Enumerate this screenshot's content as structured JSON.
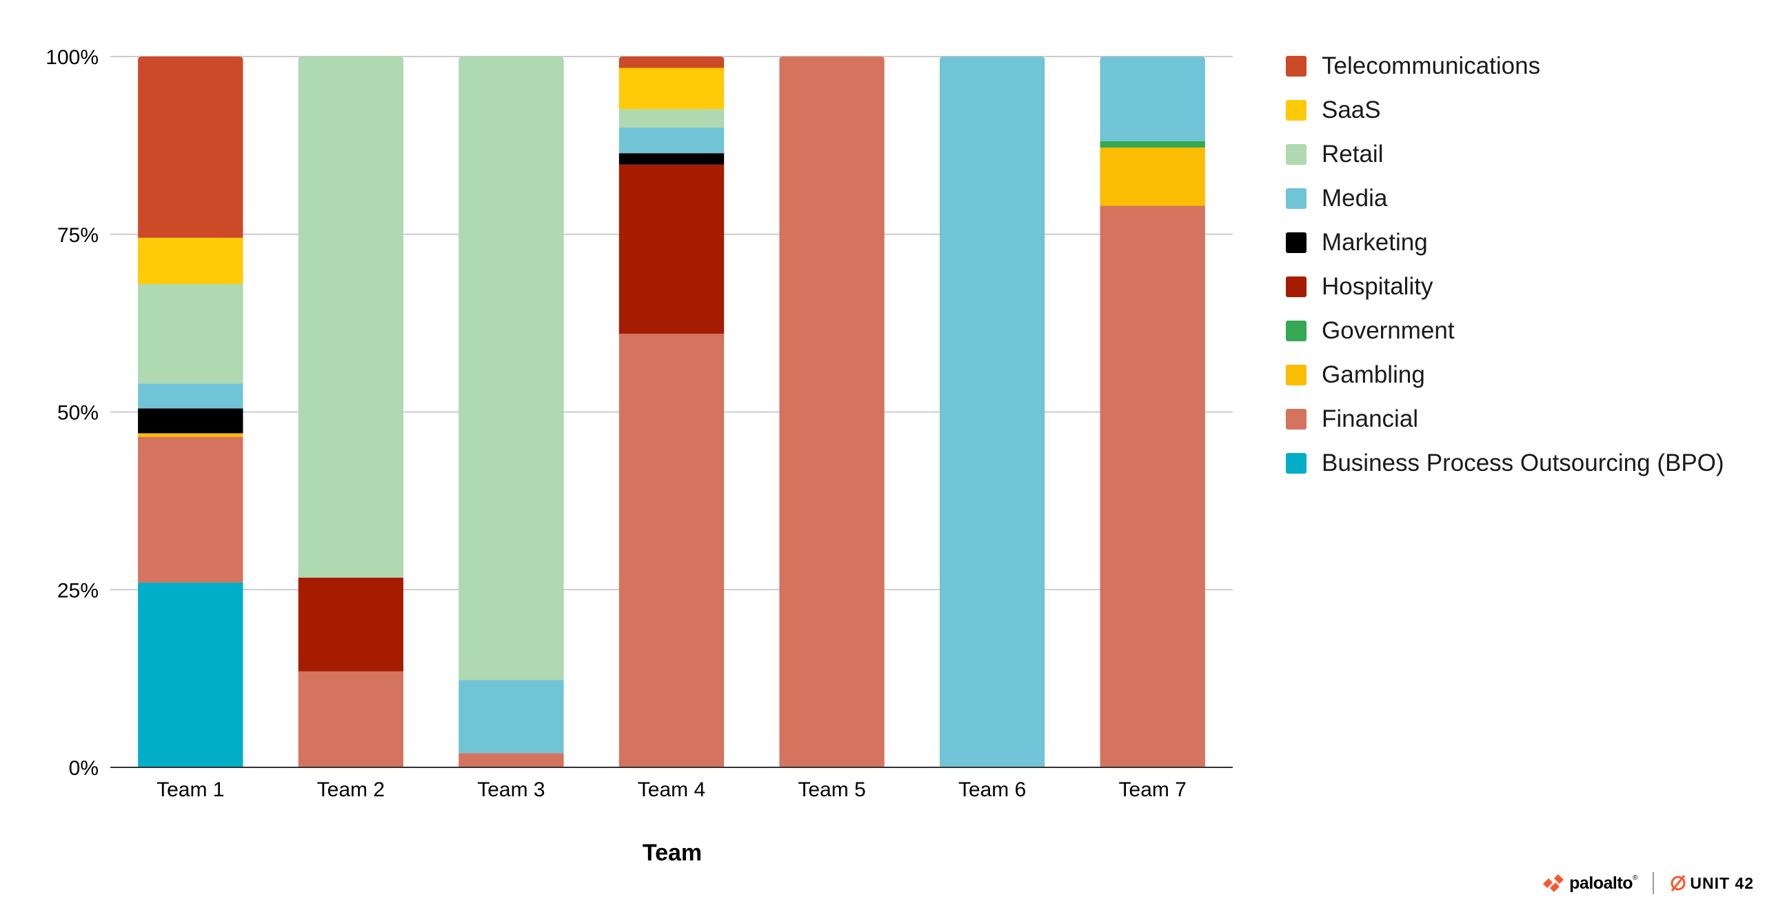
{
  "chart_data": {
    "type": "bar",
    "stacked": true,
    "percent": true,
    "categories": [
      "Team 1",
      "Team 2",
      "Team 3",
      "Team 4",
      "Team 5",
      "Team 6",
      "Team 7"
    ],
    "xlabel": "Team",
    "ylabel": "",
    "ylim": [
      0,
      100
    ],
    "yticks": [
      "0%",
      "25%",
      "50%",
      "75%",
      "100%"
    ],
    "grid": true,
    "legend_position": "right",
    "series": [
      {
        "name": "Business Process Outsourcing (BPO)",
        "color": "#00AEC7",
        "values": [
          26,
          0,
          0,
          0,
          0,
          0,
          0
        ]
      },
      {
        "name": "Financial",
        "color": "#D4745E",
        "values": [
          20.5,
          13.5,
          2,
          61,
          100,
          0,
          79
        ]
      },
      {
        "name": "Gambling",
        "color": "#FBBC04",
        "values": [
          0.5,
          0,
          0,
          0,
          0,
          0,
          8.2
        ]
      },
      {
        "name": "Government",
        "color": "#34A853",
        "values": [
          0,
          0,
          0,
          0,
          0,
          0,
          0.9
        ]
      },
      {
        "name": "Hospitality",
        "color": "#A51C00",
        "values": [
          0,
          13.2,
          0,
          23.8,
          0,
          0,
          0
        ]
      },
      {
        "name": "Marketing",
        "color": "#000000",
        "values": [
          3.5,
          0,
          0,
          1.6,
          0,
          0,
          0
        ]
      },
      {
        "name": "Media",
        "color": "#70C4D6",
        "values": [
          3.5,
          0,
          10.3,
          3.6,
          0,
          100,
          11.9
        ]
      },
      {
        "name": "Retail",
        "color": "#AED9B1",
        "values": [
          14,
          73.3,
          87.7,
          2.6,
          0,
          0,
          0
        ]
      },
      {
        "name": "SaaS",
        "color": "#FFCA07",
        "values": [
          6.5,
          0,
          0,
          5.8,
          0,
          0,
          0
        ]
      },
      {
        "name": "Telecommunications",
        "color": "#CC4A27",
        "values": [
          25.5,
          0,
          0,
          1.6,
          0,
          0,
          0
        ]
      }
    ]
  },
  "legend": [
    {
      "label": "Telecommunications",
      "color": "#CC4A27"
    },
    {
      "label": "SaaS",
      "color": "#FFCA07"
    },
    {
      "label": "Retail",
      "color": "#AED9B1"
    },
    {
      "label": "Media",
      "color": "#70C4D6"
    },
    {
      "label": "Marketing",
      "color": "#000000"
    },
    {
      "label": "Hospitality",
      "color": "#A51C00"
    },
    {
      "label": "Government",
      "color": "#34A853"
    },
    {
      "label": "Gambling",
      "color": "#FBBC04"
    },
    {
      "label": "Financial",
      "color": "#D4745E"
    },
    {
      "label": "Business Process Outsourcing (BPO)",
      "color": "#00AEC7"
    }
  ],
  "branding": {
    "company": "paloalto",
    "company_sup": "®",
    "unit": "UNIT 42",
    "accent": "#FA582D"
  }
}
